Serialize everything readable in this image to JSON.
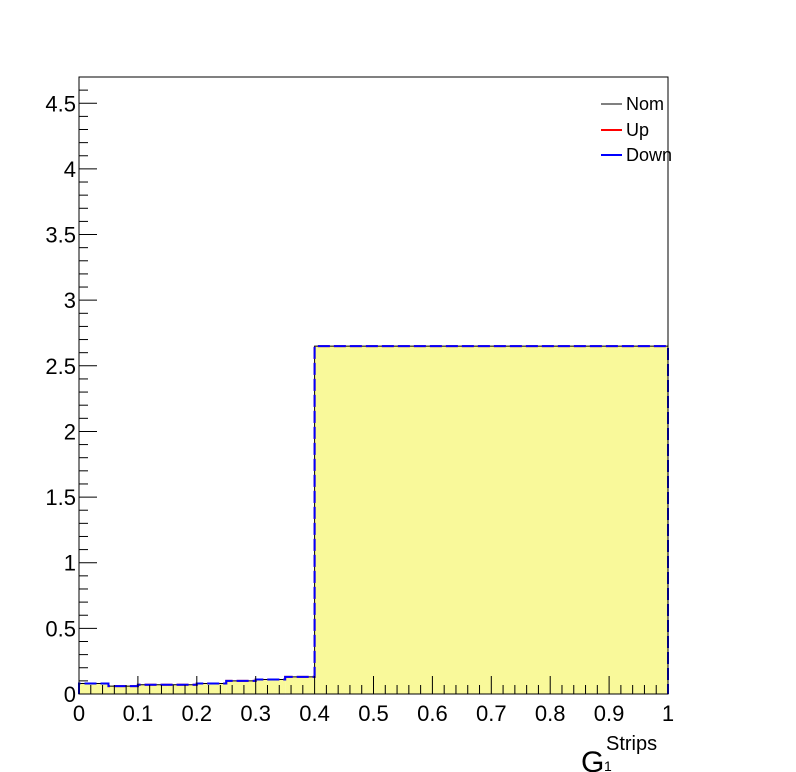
{
  "chart_data": {
    "type": "histogram",
    "xlim": [
      0,
      1
    ],
    "ylim": [
      0,
      4.7
    ],
    "bin_edges": [
      0,
      0.05,
      0.1,
      0.15,
      0.2,
      0.25,
      0.3,
      0.35,
      0.4,
      1.0
    ],
    "series": [
      {
        "name": "Nom",
        "color": "#000000",
        "style": "solid",
        "fill": "#f9f99a",
        "values": [
          0.08,
          0.06,
          0.07,
          0.07,
          0.08,
          0.1,
          0.11,
          0.13,
          2.65
        ]
      },
      {
        "name": "Up",
        "color": "#ff0000",
        "style": "dashed",
        "values": [
          0.08,
          0.06,
          0.07,
          0.07,
          0.08,
          0.1,
          0.11,
          0.13,
          2.65
        ]
      },
      {
        "name": "Down",
        "color": "#0000ff",
        "style": "dashed",
        "values": [
          0.08,
          0.06,
          0.07,
          0.07,
          0.08,
          0.1,
          0.11,
          0.13,
          2.65
        ]
      }
    ],
    "x_ticks": [
      0,
      0.1,
      0.2,
      0.3,
      0.4,
      0.5,
      0.6,
      0.7,
      0.8,
      0.9,
      1
    ],
    "x_tick_labels": [
      "0",
      "0.1",
      "0.2",
      "0.3",
      "0.4",
      "0.5",
      "0.6",
      "0.7",
      "0.8",
      "0.9",
      "1"
    ],
    "y_ticks": [
      0,
      0.5,
      1,
      1.5,
      2,
      2.5,
      3,
      3.5,
      4,
      4.5
    ],
    "y_tick_labels": [
      "0",
      "0.5",
      "1",
      "1.5",
      "2",
      "2.5",
      "3",
      "3.5",
      "4",
      "4.5"
    ],
    "xlabel": {
      "main": "G",
      "superscript": "Strips",
      "subscript": "1"
    },
    "ylabel": "",
    "legend": {
      "position": "top-right",
      "entries": [
        "Nom",
        "Up",
        "Down"
      ]
    },
    "grid": false
  }
}
